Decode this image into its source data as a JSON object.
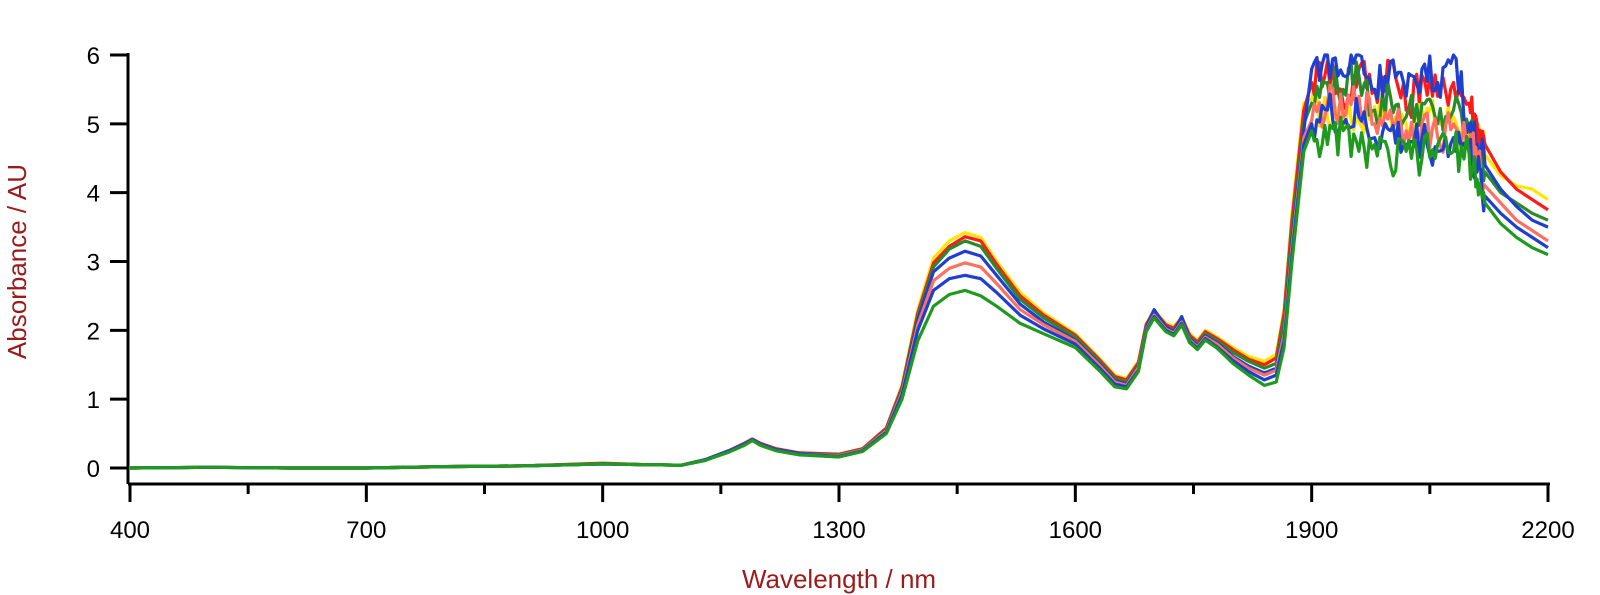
{
  "chart_data": {
    "type": "line",
    "title": "",
    "xlabel": "Wavelength / nm",
    "ylabel": "Absorbance / AU",
    "xlim": [
      400,
      2200
    ],
    "ylim": [
      0,
      6
    ],
    "x_ticks": [
      400,
      700,
      1000,
      1300,
      1600,
      1900,
      2200
    ],
    "x_minor_ticks": [
      550,
      850,
      1150,
      1450,
      1750,
      2050
    ],
    "y_ticks": [
      0,
      1,
      2,
      3,
      4,
      5,
      6
    ],
    "grid": false,
    "legend": "none",
    "label_color": "#9b1b1b",
    "saturation_cap": 6,
    "x": [
      400,
      500,
      600,
      700,
      800,
      900,
      1000,
      1050,
      1100,
      1130,
      1160,
      1180,
      1190,
      1200,
      1220,
      1250,
      1300,
      1330,
      1360,
      1380,
      1400,
      1420,
      1440,
      1460,
      1480,
      1500,
      1530,
      1560,
      1600,
      1630,
      1650,
      1665,
      1680,
      1690,
      1700,
      1715,
      1725,
      1735,
      1745,
      1755,
      1765,
      1780,
      1800,
      1820,
      1840,
      1855,
      1865,
      1875,
      1890,
      1900,
      1920,
      1940,
      1960,
      1980,
      2000,
      2020,
      2040,
      2060,
      2080,
      2100,
      2110,
      2120,
      2140,
      2160,
      2180,
      2200
    ],
    "series": [
      {
        "color": "#ffe600",
        "values": [
          0.0,
          0.01,
          0.0,
          0.0,
          0.02,
          0.03,
          0.07,
          0.05,
          0.04,
          0.12,
          0.25,
          0.36,
          0.42,
          0.36,
          0.28,
          0.22,
          0.2,
          0.28,
          0.58,
          1.2,
          2.3,
          3.05,
          3.3,
          3.42,
          3.35,
          3.0,
          2.55,
          2.25,
          1.95,
          1.6,
          1.35,
          1.3,
          1.55,
          2.1,
          2.3,
          2.1,
          2.05,
          2.2,
          1.95,
          1.85,
          2.0,
          1.9,
          1.75,
          1.62,
          1.55,
          1.65,
          2.3,
          3.7,
          5.3,
          5.35,
          5.1,
          5.2,
          5.05,
          5.25,
          5.1,
          5.0,
          5.2,
          5.05,
          5.1,
          4.95,
          4.85,
          4.55,
          4.25,
          4.1,
          4.05,
          3.9
        ]
      },
      {
        "color": "#ff1a1a",
        "values": [
          0.0,
          0.01,
          0.0,
          0.0,
          0.02,
          0.03,
          0.07,
          0.05,
          0.04,
          0.12,
          0.25,
          0.36,
          0.42,
          0.36,
          0.28,
          0.22,
          0.2,
          0.28,
          0.58,
          1.18,
          2.25,
          2.98,
          3.22,
          3.36,
          3.3,
          2.96,
          2.5,
          2.22,
          1.93,
          1.58,
          1.33,
          1.28,
          1.53,
          2.08,
          2.28,
          2.08,
          2.03,
          2.18,
          1.93,
          1.83,
          1.98,
          1.88,
          1.72,
          1.58,
          1.5,
          1.6,
          2.25,
          3.6,
          5.2,
          5.6,
          5.9,
          5.3,
          5.8,
          5.5,
          5.9,
          5.2,
          5.7,
          5.4,
          5.6,
          5.3,
          5.0,
          4.7,
          4.3,
          4.05,
          3.9,
          3.75
        ]
      },
      {
        "color": "#2a8a2a",
        "values": [
          0.0,
          0.01,
          0.0,
          0.0,
          0.02,
          0.03,
          0.06,
          0.05,
          0.04,
          0.12,
          0.25,
          0.35,
          0.41,
          0.35,
          0.27,
          0.21,
          0.19,
          0.27,
          0.56,
          1.15,
          2.2,
          2.92,
          3.18,
          3.3,
          3.22,
          2.9,
          2.45,
          2.18,
          1.9,
          1.55,
          1.3,
          1.25,
          1.5,
          2.05,
          2.25,
          2.05,
          2.0,
          2.15,
          1.9,
          1.8,
          1.95,
          1.85,
          1.68,
          1.55,
          1.45,
          1.52,
          2.15,
          3.45,
          5.0,
          5.3,
          5.6,
          5.5,
          5.7,
          5.2,
          5.4,
          5.1,
          5.3,
          5.0,
          5.2,
          4.9,
          4.6,
          4.3,
          4.0,
          3.85,
          3.7,
          3.6
        ]
      },
      {
        "color": "#1e3fd0",
        "values": [
          0.0,
          0.01,
          0.0,
          0.0,
          0.02,
          0.03,
          0.06,
          0.05,
          0.04,
          0.12,
          0.25,
          0.35,
          0.42,
          0.35,
          0.27,
          0.21,
          0.18,
          0.26,
          0.55,
          1.12,
          2.15,
          2.85,
          3.05,
          3.15,
          3.08,
          2.8,
          2.38,
          2.12,
          1.86,
          1.52,
          1.27,
          1.22,
          1.48,
          2.05,
          2.3,
          2.05,
          1.98,
          2.2,
          1.88,
          1.78,
          1.92,
          1.82,
          1.62,
          1.48,
          1.38,
          1.45,
          2.0,
          3.3,
          4.9,
          5.8,
          6.0,
          5.7,
          6.0,
          5.5,
          5.9,
          5.4,
          5.8,
          5.6,
          6.0,
          5.0,
          4.7,
          4.4,
          4.05,
          3.8,
          3.6,
          3.5
        ]
      },
      {
        "color": "#ff7060",
        "values": [
          0.0,
          0.01,
          0.0,
          0.0,
          0.02,
          0.03,
          0.06,
          0.05,
          0.04,
          0.11,
          0.24,
          0.34,
          0.41,
          0.34,
          0.26,
          0.2,
          0.18,
          0.26,
          0.54,
          1.1,
          2.08,
          2.72,
          2.9,
          2.98,
          2.92,
          2.68,
          2.3,
          2.08,
          1.84,
          1.5,
          1.25,
          1.2,
          1.46,
          2.02,
          2.22,
          2.02,
          1.96,
          2.12,
          1.86,
          1.76,
          1.9,
          1.8,
          1.6,
          1.45,
          1.35,
          1.42,
          1.95,
          3.2,
          4.8,
          5.05,
          5.3,
          5.1,
          5.4,
          5.0,
          5.2,
          4.9,
          5.0,
          4.8,
          5.0,
          4.75,
          4.45,
          4.1,
          3.85,
          3.6,
          3.45,
          3.3
        ]
      },
      {
        "color": "#1e3fd0",
        "values": [
          0.0,
          0.01,
          0.0,
          0.0,
          0.02,
          0.03,
          0.06,
          0.05,
          0.04,
          0.11,
          0.24,
          0.34,
          0.41,
          0.34,
          0.26,
          0.2,
          0.17,
          0.25,
          0.52,
          1.06,
          2.0,
          2.58,
          2.75,
          2.8,
          2.75,
          2.55,
          2.22,
          2.02,
          1.8,
          1.46,
          1.22,
          1.18,
          1.42,
          2.0,
          2.2,
          2.0,
          1.94,
          2.1,
          1.84,
          1.74,
          1.88,
          1.76,
          1.56,
          1.4,
          1.28,
          1.35,
          1.85,
          3.1,
          4.7,
          5.0,
          5.2,
          5.0,
          5.1,
          4.8,
          4.9,
          4.7,
          4.8,
          4.6,
          4.8,
          4.6,
          4.3,
          3.95,
          3.7,
          3.5,
          3.35,
          3.2
        ]
      },
      {
        "color": "#1f9a1f",
        "values": [
          0.0,
          0.01,
          0.0,
          0.0,
          0.02,
          0.03,
          0.06,
          0.05,
          0.04,
          0.11,
          0.23,
          0.33,
          0.4,
          0.33,
          0.25,
          0.19,
          0.16,
          0.24,
          0.5,
          1.0,
          1.85,
          2.35,
          2.52,
          2.58,
          2.5,
          2.35,
          2.1,
          1.95,
          1.75,
          1.42,
          1.18,
          1.15,
          1.4,
          1.98,
          2.18,
          1.98,
          1.92,
          2.08,
          1.82,
          1.72,
          1.86,
          1.74,
          1.52,
          1.35,
          1.2,
          1.25,
          1.75,
          3.0,
          4.6,
          4.9,
          4.7,
          4.9,
          4.6,
          4.7,
          4.4,
          4.6,
          4.5,
          4.7,
          4.6,
          4.55,
          4.2,
          3.85,
          3.55,
          3.35,
          3.2,
          3.1
        ]
      }
    ]
  }
}
